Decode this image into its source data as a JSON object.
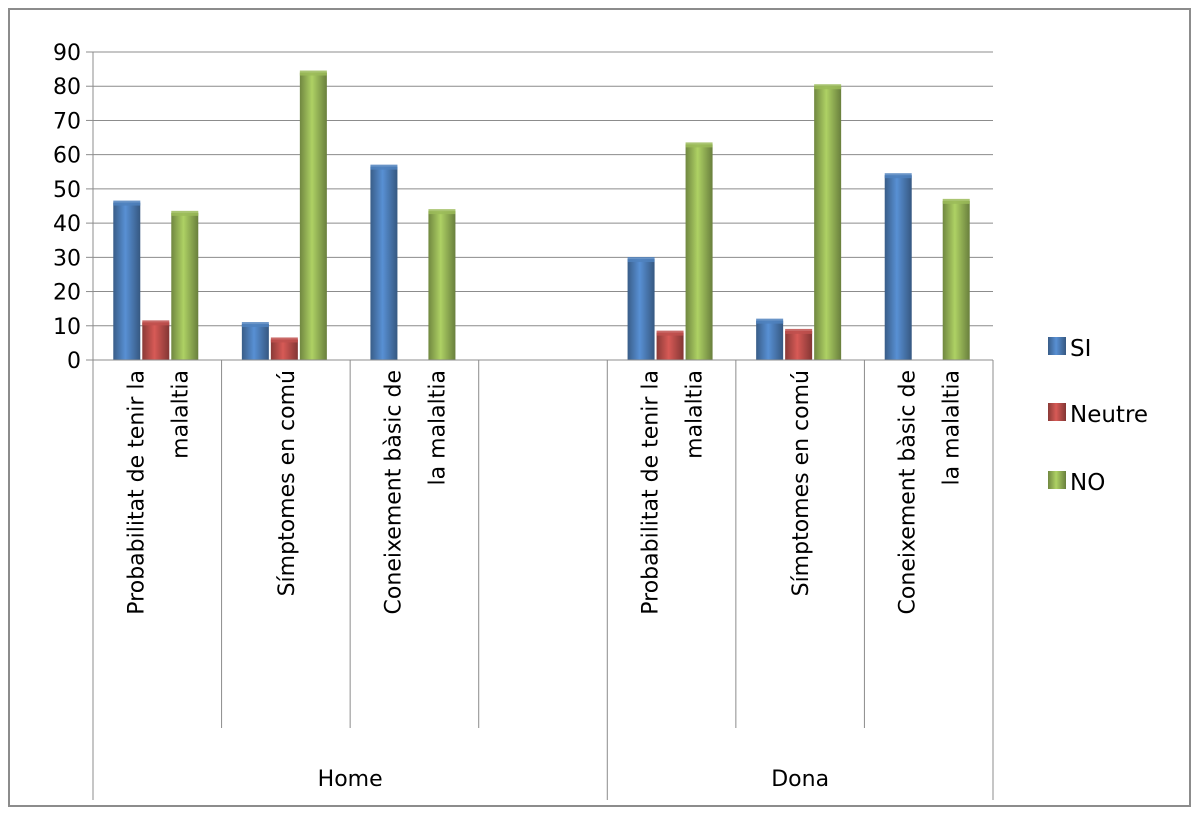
{
  "chart_data": {
    "type": "bar",
    "title": "",
    "xlabel": "",
    "ylabel": "",
    "ylim": [
      0,
      90
    ],
    "yticks": [
      0,
      10,
      20,
      30,
      40,
      50,
      60,
      70,
      80,
      90
    ],
    "grid": true,
    "legend_position": "right",
    "groups": [
      {
        "label": "Home",
        "categories": [
          {
            "label_lines": [
              "Probabilitat de tenir la",
              "malaltia"
            ],
            "values": [
              46,
              11,
              43
            ]
          },
          {
            "label_lines": [
              "Símptomes en comú"
            ],
            "values": [
              10.5,
              6,
              84
            ]
          },
          {
            "label_lines": [
              "Coneixement bàsic de",
              "la malaltia"
            ],
            "values": [
              56.5,
              null,
              43.5
            ]
          },
          {
            "label_lines": [],
            "values": [
              null,
              null,
              null
            ]
          }
        ]
      },
      {
        "label": "Dona",
        "categories": [
          {
            "label_lines": [
              "Probabilitat de tenir la",
              "malaltia"
            ],
            "values": [
              29.5,
              8,
              63
            ]
          },
          {
            "label_lines": [
              "Símptomes en comú"
            ],
            "values": [
              11.5,
              8.5,
              80
            ]
          },
          {
            "label_lines": [
              "Coneixement bàsic de",
              "la malaltia"
            ],
            "values": [
              54,
              null,
              46.5
            ]
          }
        ]
      }
    ],
    "series": [
      {
        "name": "SI",
        "color": "#4f81bd"
      },
      {
        "name": "Neutre",
        "color": "#c0504d"
      },
      {
        "name": "NO",
        "color": "#9bbb59"
      }
    ]
  }
}
